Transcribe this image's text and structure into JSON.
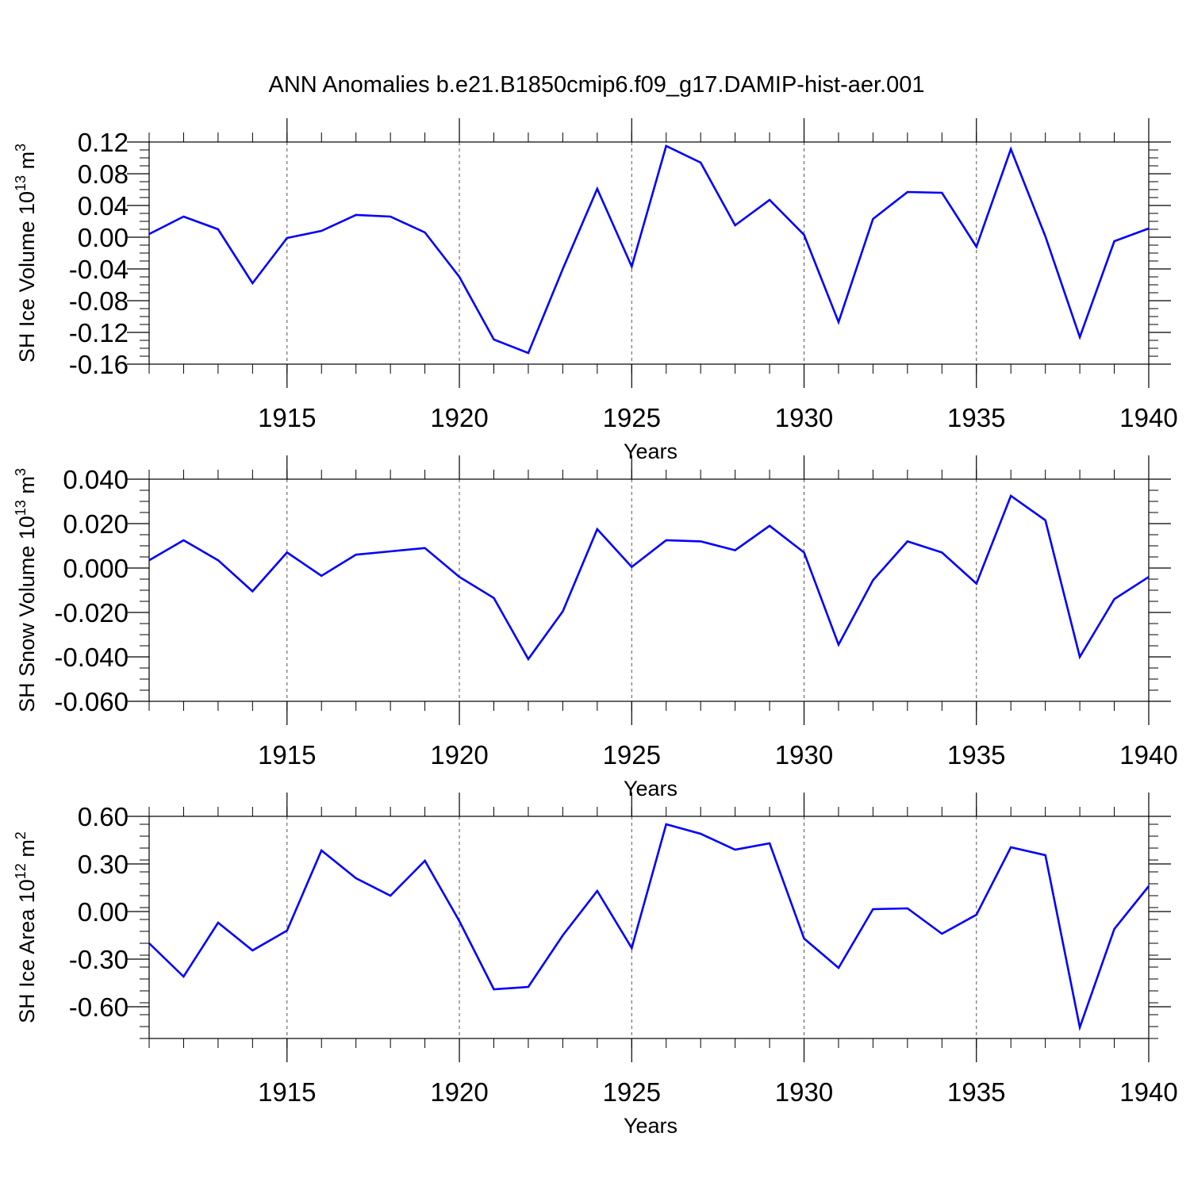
{
  "figure": {
    "title": "ANN Anomalies b.e21.B1850cmip6.f09_g17.DAMIP-hist-aer.001"
  },
  "chart_data": [
    {
      "type": "line",
      "title": "ANN Anomalies b.e21.B1850cmip6.f09_g17.DAMIP-hist-aer.001",
      "xlabel": "Years",
      "ylabel": {
        "text": "SH Ice Volume 10",
        "exponent": "13",
        "unit": " m",
        "unit_exponent": "3"
      },
      "xlim": [
        1911,
        1940
      ],
      "ylim": [
        -0.16,
        0.12
      ],
      "xticks": [
        1915,
        1920,
        1925,
        1930,
        1935,
        1940
      ],
      "yticks": [
        -0.16,
        -0.12,
        -0.08,
        -0.04,
        0.0,
        0.04,
        0.08,
        0.12
      ],
      "ytick_labels": [
        "-0.16",
        "-0.12",
        "-0.08",
        "-0.04",
        "0.00",
        "0.04",
        "0.08",
        "0.12"
      ],
      "grid": "dashed vertical lines at major x ticks",
      "series": [
        {
          "color": "#0000ff",
          "x": [
            1911,
            1912,
            1913,
            1914,
            1915,
            1916,
            1917,
            1918,
            1919,
            1920,
            1921,
            1922,
            1923,
            1924,
            1925,
            1926,
            1927,
            1928,
            1929,
            1930,
            1931,
            1932,
            1933,
            1934,
            1935,
            1936,
            1937,
            1938,
            1939,
            1940
          ],
          "values": [
            0.004,
            0.026,
            0.01,
            -0.058,
            -0.001,
            0.008,
            0.028,
            0.026,
            0.006,
            -0.05,
            -0.129,
            -0.146,
            -0.04,
            0.061,
            -0.037,
            0.115,
            0.094,
            0.015,
            0.047,
            0.003,
            -0.107,
            0.023,
            0.057,
            0.056,
            -0.012,
            0.111,
            0.001,
            -0.126,
            -0.005,
            0.011
          ]
        }
      ]
    },
    {
      "type": "line",
      "xlabel": "Years",
      "ylabel": {
        "text": "SH Snow Volume 10",
        "exponent": "13",
        "unit": " m",
        "unit_exponent": "3"
      },
      "xlim": [
        1911,
        1940
      ],
      "ylim": [
        -0.06,
        0.04
      ],
      "xticks": [
        1915,
        1920,
        1925,
        1930,
        1935,
        1940
      ],
      "yticks": [
        -0.06,
        -0.04,
        -0.02,
        0.0,
        0.02,
        0.04
      ],
      "ytick_labels": [
        "-0.060",
        "-0.040",
        "-0.020",
        "0.000",
        "0.020",
        "0.040"
      ],
      "grid": "dashed vertical lines at major x ticks",
      "series": [
        {
          "color": "#0000ff",
          "x": [
            1911,
            1912,
            1913,
            1914,
            1915,
            1916,
            1917,
            1918,
            1919,
            1920,
            1921,
            1922,
            1923,
            1924,
            1925,
            1926,
            1927,
            1928,
            1929,
            1930,
            1931,
            1932,
            1933,
            1934,
            1935,
            1936,
            1937,
            1938,
            1939,
            1940
          ],
          "values": [
            0.0035,
            0.0125,
            0.0035,
            -0.0105,
            0.007,
            -0.0035,
            0.006,
            0.0075,
            0.009,
            -0.004,
            -0.0135,
            -0.041,
            -0.0195,
            0.0175,
            0.0005,
            0.0125,
            0.012,
            0.008,
            0.019,
            0.007,
            -0.0345,
            -0.0055,
            0.012,
            0.007,
            -0.007,
            0.0325,
            0.0215,
            -0.04,
            -0.014,
            -0.004
          ]
        }
      ]
    },
    {
      "type": "line",
      "xlabel": "Years",
      "ylabel": {
        "text": "SH Ice Area 10",
        "exponent": "12",
        "unit": " m",
        "unit_exponent": "2"
      },
      "xlim": [
        1911,
        1940
      ],
      "ylim": [
        -0.8,
        0.6
      ],
      "xticks": [
        1915,
        1920,
        1925,
        1930,
        1935,
        1940
      ],
      "yticks": [
        -0.6,
        -0.3,
        0.0,
        0.3,
        0.6
      ],
      "ytick_labels": [
        "-0.60",
        "-0.30",
        "0.00",
        "0.30",
        "0.60"
      ],
      "grid": "dashed vertical lines at major x ticks",
      "series": [
        {
          "color": "#0000ff",
          "x": [
            1911,
            1912,
            1913,
            1914,
            1915,
            1916,
            1917,
            1918,
            1919,
            1920,
            1921,
            1922,
            1923,
            1924,
            1925,
            1926,
            1927,
            1928,
            1929,
            1930,
            1931,
            1932,
            1933,
            1934,
            1935,
            1936,
            1937,
            1938,
            1939,
            1940
          ],
          "values": [
            -0.2,
            -0.41,
            -0.07,
            -0.245,
            -0.12,
            0.385,
            0.21,
            0.1,
            0.32,
            -0.06,
            -0.49,
            -0.475,
            -0.15,
            0.13,
            -0.23,
            0.55,
            0.49,
            0.39,
            0.43,
            -0.17,
            -0.355,
            0.015,
            0.02,
            -0.14,
            -0.02,
            0.405,
            0.355,
            -0.73,
            -0.11,
            0.16
          ]
        }
      ]
    }
  ]
}
